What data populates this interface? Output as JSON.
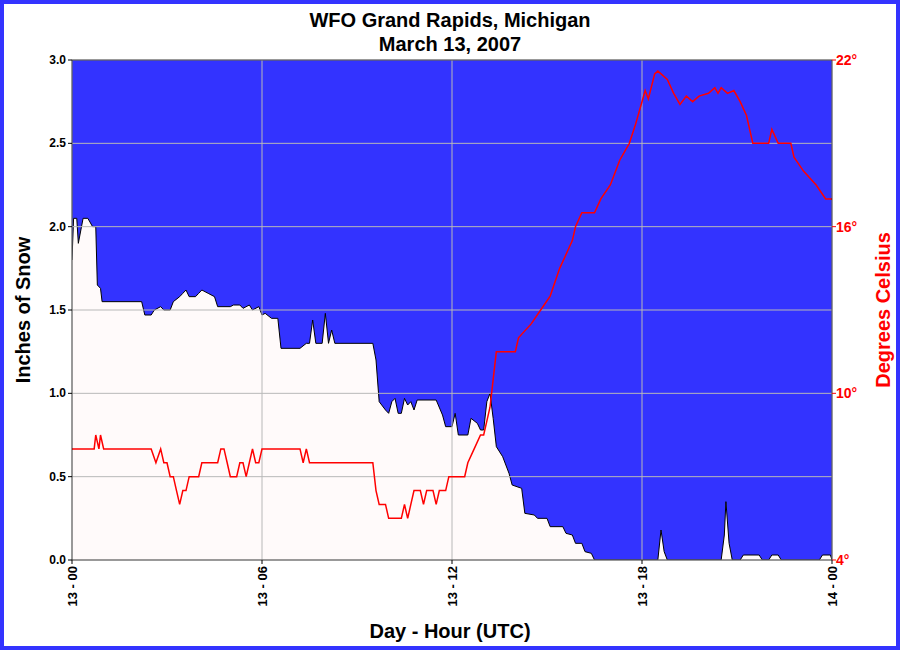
{
  "chart_data": {
    "type": "area",
    "title": "WFO Grand Rapids, Michigan",
    "subtitle": "March 13, 2007",
    "x_label": "Day - Hour (UTC)",
    "y_label": "Inches of Snow",
    "y2_label": "Degrees Celsius",
    "xlim": [
      0,
      24
    ],
    "xticks": [
      {
        "value": 0,
        "label": "13 - 00"
      },
      {
        "value": 6,
        "label": "13 - 06"
      },
      {
        "value": 12,
        "label": "13 - 12"
      },
      {
        "value": 18,
        "label": "13 - 18"
      },
      {
        "value": 24,
        "label": "14 - 00"
      }
    ],
    "ylim": [
      0,
      3
    ],
    "yticks": [
      {
        "value": 0,
        "label": "0.0"
      },
      0.5,
      {
        "value": 1,
        "label": "1.0"
      },
      1.5,
      {
        "value": 2,
        "label": "2.0"
      },
      2.5,
      {
        "value": 3,
        "label": "3.0"
      }
    ],
    "y2lim": [
      4,
      22
    ],
    "y2ticks": [
      {
        "value": 4,
        "label": "4°"
      },
      {
        "value": 10,
        "label": "10°"
      },
      {
        "value": 16,
        "label": "16°"
      },
      {
        "value": 22,
        "label": "22°"
      }
    ],
    "grid": true,
    "series": [
      {
        "type": "area",
        "color": "#fffafa",
        "x": [
          0,
          0.05,
          0.15,
          0.2,
          0.3,
          0.35,
          0.5,
          0.65,
          0.75,
          0.8,
          0.9,
          0.95,
          2.2,
          2.3,
          2.5,
          2.6,
          2.8,
          2.9,
          3.1,
          3.2,
          3.4,
          3.5,
          3.6,
          3.7,
          3.9,
          4.0,
          4.1,
          4.3,
          4.5,
          4.6,
          5.0,
          5.1,
          5.3,
          5.4,
          5.6,
          5.7,
          5.9,
          6.0,
          6.1,
          6.3,
          6.5,
          6.6,
          7.2,
          7.4,
          7.5,
          7.6,
          7.7,
          7.9,
          8.0,
          8.1,
          8.2,
          8.3,
          9.5,
          9.6,
          9.7,
          9.9,
          10.0,
          10.1,
          10.2,
          10.3,
          10.4,
          10.5,
          10.6,
          10.7,
          10.8,
          10.9,
          11.5,
          11.7,
          11.8,
          12.0,
          12.1,
          12.2,
          12.5,
          12.6,
          12.8,
          12.9,
          13.0,
          13.1,
          13.2,
          13.3,
          13.4,
          13.6,
          13.8,
          13.9,
          14.2,
          14.3,
          14.6,
          14.7,
          15.0,
          15.1,
          15.5,
          15.6,
          15.8,
          15.9,
          16.1,
          16.2,
          16.4,
          16.5,
          18.5,
          18.6,
          18.7,
          18.8,
          20.5,
          20.6,
          20.65,
          20.75,
          20.85,
          21.1,
          21.2,
          21.7,
          21.8,
          22.0,
          22.1,
          22.3,
          22.4,
          23.6,
          23.7,
          23.95,
          24
        ],
        "values": [
          1.8,
          2.05,
          2.05,
          1.9,
          2.0,
          2.05,
          2.05,
          2.0,
          2.0,
          1.65,
          1.63,
          1.55,
          1.55,
          1.47,
          1.47,
          1.5,
          1.52,
          1.5,
          1.5,
          1.55,
          1.58,
          1.6,
          1.62,
          1.58,
          1.58,
          1.6,
          1.62,
          1.6,
          1.58,
          1.52,
          1.52,
          1.53,
          1.53,
          1.51,
          1.53,
          1.5,
          1.52,
          1.47,
          1.48,
          1.45,
          1.45,
          1.27,
          1.27,
          1.3,
          1.3,
          1.44,
          1.3,
          1.3,
          1.48,
          1.3,
          1.38,
          1.3,
          1.3,
          1.2,
          0.95,
          0.9,
          0.88,
          0.95,
          0.97,
          0.88,
          0.88,
          0.97,
          0.93,
          0.95,
          0.9,
          0.96,
          0.96,
          0.87,
          0.8,
          0.8,
          0.88,
          0.75,
          0.75,
          0.85,
          0.82,
          0.78,
          0.78,
          0.95,
          1.0,
          0.85,
          0.68,
          0.62,
          0.52,
          0.45,
          0.43,
          0.28,
          0.27,
          0.25,
          0.25,
          0.2,
          0.2,
          0.16,
          0.15,
          0.1,
          0.1,
          0.05,
          0.04,
          0,
          0,
          0.18,
          0.05,
          0,
          0,
          0.15,
          0.35,
          0.1,
          0,
          0,
          0.03,
          0.03,
          0,
          0,
          0.03,
          0.03,
          0,
          0,
          0.03,
          0.03,
          0
        ]
      },
      {
        "type": "line",
        "axis": "y2",
        "color": "#ff0000",
        "x": [
          0,
          0.7,
          0.75,
          0.85,
          0.9,
          1.0,
          2.5,
          2.65,
          2.8,
          2.9,
          3.0,
          3.1,
          3.2,
          3.3,
          3.4,
          3.5,
          3.6,
          3.7,
          4.0,
          4.1,
          4.6,
          4.7,
          4.8,
          4.9,
          5.0,
          5.2,
          5.3,
          5.4,
          5.5,
          5.6,
          5.7,
          5.8,
          5.9,
          6.0,
          7.2,
          7.3,
          7.4,
          7.5,
          9.5,
          9.6,
          9.7,
          9.9,
          10.0,
          10.4,
          10.5,
          10.6,
          10.7,
          10.8,
          11.0,
          11.1,
          11.2,
          11.4,
          11.5,
          11.6,
          11.8,
          11.9,
          12.4,
          12.5,
          12.7,
          12.9,
          13.0,
          13.1,
          13.2,
          13.3,
          13.4,
          14.0,
          14.1,
          14.5,
          14.8,
          15.1,
          15.4,
          15.6,
          15.8,
          15.9,
          16.1,
          16.5,
          16.7,
          17.0,
          17.3,
          17.6,
          17.8,
          18.0,
          18.1,
          18.2,
          18.4,
          18.5,
          18.6,
          18.8,
          19.0,
          19.2,
          19.4,
          19.6,
          19.8,
          20.1,
          20.3,
          20.4,
          20.5,
          20.7,
          20.9,
          21.1,
          21.3,
          21.5,
          22.0,
          22.1,
          22.3,
          22.7,
          22.8,
          23.1,
          23.5,
          23.8,
          24
        ],
        "values": [
          8.0,
          8.0,
          8.5,
          8.0,
          8.5,
          8.0,
          8.0,
          7.5,
          8.0,
          7.5,
          7.5,
          7.0,
          7.0,
          6.5,
          6.0,
          6.5,
          6.5,
          7.0,
          7.0,
          7.5,
          7.5,
          8.0,
          8.0,
          7.5,
          7.0,
          7.0,
          7.5,
          7.5,
          7.0,
          7.5,
          8.0,
          7.5,
          7.5,
          8.0,
          8.0,
          7.5,
          8.0,
          7.5,
          7.5,
          6.5,
          6.0,
          6.0,
          5.5,
          5.5,
          6.0,
          5.5,
          6.0,
          6.5,
          6.5,
          6.0,
          6.5,
          6.5,
          6.0,
          6.5,
          6.5,
          7.0,
          7.0,
          7.5,
          8.0,
          8.5,
          8.5,
          9.0,
          9.5,
          10.5,
          11.5,
          11.5,
          12.0,
          12.5,
          13.0,
          13.5,
          14.5,
          15.0,
          15.5,
          16.0,
          16.5,
          16.5,
          17.0,
          17.5,
          18.4,
          19.0,
          19.7,
          20.5,
          20.9,
          20.6,
          21.5,
          21.6,
          21.5,
          21.3,
          20.8,
          20.4,
          20.7,
          20.5,
          20.7,
          20.8,
          21.0,
          20.8,
          21.0,
          20.8,
          20.9,
          20.5,
          20.0,
          19.0,
          19.0,
          19.5,
          19.0,
          19.0,
          18.5,
          18.0,
          17.5,
          17.0,
          17.0
        ]
      }
    ]
  }
}
